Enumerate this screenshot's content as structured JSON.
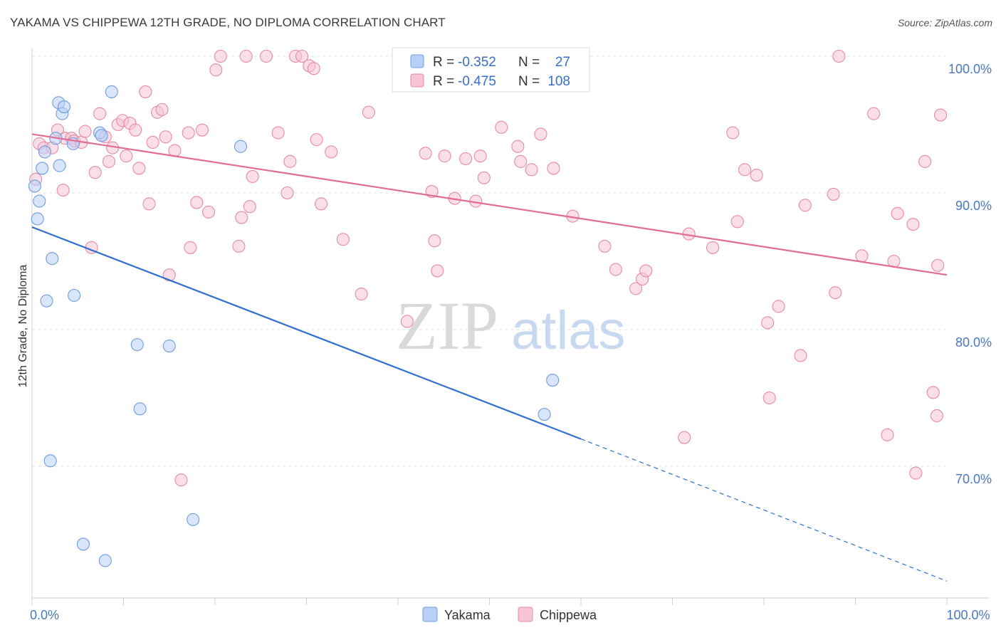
{
  "title": "YAKAMA VS CHIPPEWA 12TH GRADE, NO DIPLOMA CORRELATION CHART",
  "source": "Source: ZipAtlas.com",
  "watermark": {
    "zip": "ZIP",
    "atlas": "atlas"
  },
  "legend": {
    "r_label": "R =",
    "n_label": "N =",
    "rows": [
      {
        "name": "Yakama",
        "r": "-0.352",
        "n": "27",
        "fill": "#b8d0f5",
        "stroke": "#6f9be0"
      },
      {
        "name": "Chippewa",
        "r": "-0.475",
        "n": "108",
        "fill": "#f8c5d5",
        "stroke": "#e58aa8"
      }
    ]
  },
  "chart_data": {
    "type": "scatter",
    "xlabel": "",
    "ylabel": "12th Grade, No Diploma",
    "xlim": [
      0,
      100
    ],
    "ylim": [
      60.5,
      102
    ],
    "x_tick_labels": [
      {
        "x": 0,
        "label": "0.0%"
      },
      {
        "x": 100,
        "label": "100.0%"
      }
    ],
    "y_tick_labels": [
      {
        "y": 100,
        "label": "100.0%"
      },
      {
        "y": 90,
        "label": "90.0%"
      },
      {
        "y": 80,
        "label": "80.0%"
      },
      {
        "y": 70,
        "label": "70.0%"
      }
    ],
    "grid": true,
    "series": [
      {
        "name": "Yakama",
        "color": "#6f9be0",
        "fill": "#b8d0f5",
        "line_color": "#2f6fd0",
        "trend": {
          "x0": 0,
          "y0": 87.5,
          "x1": 60,
          "y1": 72.0,
          "dash_to_x": 100,
          "dash_to_y": 61.6
        },
        "points": [
          [
            0.3,
            90.5
          ],
          [
            0.6,
            88.1
          ],
          [
            0.8,
            89.4
          ],
          [
            1.1,
            91.8
          ],
          [
            1.4,
            93.0
          ],
          [
            1.6,
            82.1
          ],
          [
            2.2,
            85.2
          ],
          [
            2.6,
            94.0
          ],
          [
            3.0,
            92.0
          ],
          [
            2.9,
            96.6
          ],
          [
            3.3,
            95.8
          ],
          [
            3.5,
            96.3
          ],
          [
            4.5,
            93.6
          ],
          [
            4.6,
            82.5
          ],
          [
            7.4,
            94.4
          ],
          [
            7.6,
            94.2
          ],
          [
            8.7,
            97.4
          ],
          [
            11.5,
            78.9
          ],
          [
            11.8,
            74.2
          ],
          [
            15.0,
            78.8
          ],
          [
            17.6,
            66.1
          ],
          [
            22.8,
            93.4
          ],
          [
            56.0,
            73.8
          ],
          [
            56.9,
            76.3
          ],
          [
            2.0,
            70.4
          ],
          [
            5.6,
            64.3
          ],
          [
            8.0,
            63.1
          ]
        ]
      },
      {
        "name": "Chippewa",
        "color": "#e58aa8",
        "fill": "#f8c5d5",
        "line_color": "#e06c96",
        "trend": {
          "x0": 0,
          "y0": 94.3,
          "x1": 100,
          "y1": 84.0
        },
        "points": [
          [
            0.4,
            91.0
          ],
          [
            0.8,
            93.6
          ],
          [
            1.3,
            93.3
          ],
          [
            2.2,
            93.3
          ],
          [
            2.8,
            94.6
          ],
          [
            3.4,
            90.2
          ],
          [
            3.6,
            94.0
          ],
          [
            4.3,
            94.0
          ],
          [
            4.6,
            93.8
          ],
          [
            5.4,
            93.7
          ],
          [
            5.8,
            94.5
          ],
          [
            6.5,
            86.0
          ],
          [
            6.9,
            91.5
          ],
          [
            7.4,
            95.8
          ],
          [
            8.0,
            94.1
          ],
          [
            8.4,
            92.3
          ],
          [
            8.8,
            93.3
          ],
          [
            9.4,
            95.0
          ],
          [
            9.9,
            95.3
          ],
          [
            10.3,
            92.7
          ],
          [
            10.7,
            95.1
          ],
          [
            11.3,
            94.6
          ],
          [
            11.7,
            91.8
          ],
          [
            12.4,
            97.4
          ],
          [
            12.8,
            89.2
          ],
          [
            13.2,
            93.7
          ],
          [
            13.7,
            95.9
          ],
          [
            14.2,
            96.1
          ],
          [
            14.6,
            94.1
          ],
          [
            15.0,
            84.0
          ],
          [
            15.6,
            93.1
          ],
          [
            16.3,
            69.0
          ],
          [
            17.1,
            94.4
          ],
          [
            17.3,
            86.0
          ],
          [
            18.0,
            89.3
          ],
          [
            18.6,
            94.6
          ],
          [
            19.3,
            88.6
          ],
          [
            20.1,
            99.0
          ],
          [
            20.6,
            100.0
          ],
          [
            22.6,
            86.1
          ],
          [
            22.9,
            88.2
          ],
          [
            23.4,
            100.0
          ],
          [
            23.8,
            89.0
          ],
          [
            24.1,
            91.2
          ],
          [
            25.6,
            100.0
          ],
          [
            26.9,
            94.4
          ],
          [
            27.9,
            90.0
          ],
          [
            28.2,
            92.3
          ],
          [
            28.8,
            100.0
          ],
          [
            29.5,
            100.0
          ],
          [
            30.3,
            99.3
          ],
          [
            30.8,
            99.1
          ],
          [
            31.1,
            93.9
          ],
          [
            31.6,
            89.2
          ],
          [
            32.7,
            93.0
          ],
          [
            34.0,
            86.6
          ],
          [
            36.0,
            82.6
          ],
          [
            36.8,
            95.9
          ],
          [
            41.0,
            80.6
          ],
          [
            43.0,
            92.9
          ],
          [
            43.7,
            90.1
          ],
          [
            44.0,
            86.5
          ],
          [
            44.3,
            84.3
          ],
          [
            45.1,
            92.7
          ],
          [
            46.2,
            89.6
          ],
          [
            47.4,
            92.5
          ],
          [
            48.5,
            89.4
          ],
          [
            49.0,
            92.7
          ],
          [
            49.4,
            91.1
          ],
          [
            51.3,
            94.8
          ],
          [
            53.1,
            93.4
          ],
          [
            53.4,
            92.3
          ],
          [
            54.6,
            91.7
          ],
          [
            55.6,
            94.3
          ],
          [
            57.0,
            91.8
          ],
          [
            59.1,
            88.3
          ],
          [
            62.6,
            86.1
          ],
          [
            63.8,
            84.4
          ],
          [
            66.0,
            83.0
          ],
          [
            66.7,
            83.7
          ],
          [
            67.1,
            84.3
          ],
          [
            71.3,
            72.1
          ],
          [
            71.8,
            87.0
          ],
          [
            74.4,
            86.0
          ],
          [
            76.6,
            94.4
          ],
          [
            77.1,
            87.9
          ],
          [
            77.9,
            91.7
          ],
          [
            79.2,
            91.3
          ],
          [
            80.4,
            80.5
          ],
          [
            80.6,
            75.0
          ],
          [
            81.6,
            81.7
          ],
          [
            84.0,
            78.1
          ],
          [
            84.5,
            89.1
          ],
          [
            87.6,
            89.9
          ],
          [
            87.8,
            82.7
          ],
          [
            88.2,
            100.0
          ],
          [
            90.7,
            85.4
          ],
          [
            92.0,
            95.8
          ],
          [
            93.5,
            72.3
          ],
          [
            94.2,
            85.0
          ],
          [
            94.6,
            88.5
          ],
          [
            96.3,
            87.7
          ],
          [
            96.6,
            69.5
          ],
          [
            97.6,
            92.3
          ],
          [
            98.5,
            75.4
          ],
          [
            98.9,
            73.7
          ],
          [
            99.3,
            95.7
          ],
          [
            99.0,
            84.7
          ]
        ]
      }
    ]
  }
}
